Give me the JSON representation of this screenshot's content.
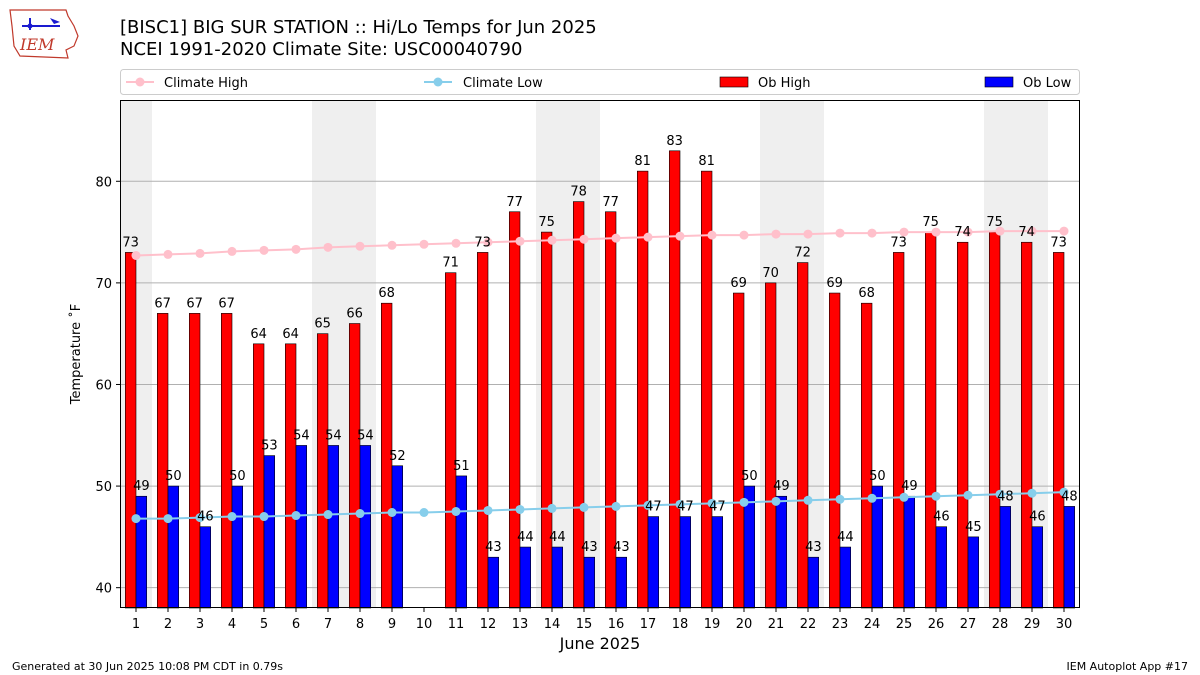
{
  "header": {
    "logo_text": "IEM",
    "title_line1": "[BISC1] BIG SUR STATION :: Hi/Lo Temps for Jun 2025",
    "title_line2": "NCEI 1991-2020 Climate Site: USC00040790"
  },
  "footer": {
    "generated": "Generated at 30 Jun 2025 10:08 PM CDT in 0.79s",
    "app": "IEM Autoplot App #17"
  },
  "colors": {
    "ob_high": "#ff0000",
    "ob_low": "#0000ff",
    "climate_high": "#ffc0cb",
    "climate_low": "#87ceeb",
    "weekend_band": "#efefef",
    "grid": "#b0b0b0"
  },
  "chart_data": {
    "type": "bar",
    "xlabel": "June 2025",
    "ylabel": "Temperature ˚F",
    "ylim": [
      38,
      88
    ],
    "yticks": [
      40,
      50,
      60,
      70,
      80
    ],
    "grid": true,
    "legend_position": "top",
    "categories": [
      "1",
      "2",
      "3",
      "4",
      "5",
      "6",
      "7",
      "8",
      "9",
      "10",
      "11",
      "12",
      "13",
      "14",
      "15",
      "16",
      "17",
      "18",
      "19",
      "20",
      "21",
      "22",
      "23",
      "24",
      "25",
      "26",
      "27",
      "28",
      "29",
      "30"
    ],
    "weekend_days": [
      1,
      7,
      8,
      14,
      15,
      21,
      22,
      28,
      29
    ],
    "series": [
      {
        "name": "Ob High",
        "kind": "bar",
        "values": [
          73,
          67,
          67,
          67,
          64,
          64,
          65,
          66,
          68,
          null,
          71,
          73,
          77,
          75,
          78,
          77,
          81,
          83,
          81,
          69,
          70,
          72,
          69,
          68,
          73,
          75,
          74,
          75,
          74,
          73
        ]
      },
      {
        "name": "Ob Low",
        "kind": "bar",
        "values": [
          49,
          50,
          46,
          50,
          53,
          54,
          54,
          54,
          52,
          null,
          51,
          43,
          44,
          44,
          43,
          43,
          47,
          47,
          47,
          50,
          49,
          43,
          44,
          50,
          49,
          46,
          45,
          48,
          46,
          48
        ]
      },
      {
        "name": "Climate High",
        "kind": "line",
        "values": [
          72.7,
          72.8,
          72.9,
          73.1,
          73.2,
          73.3,
          73.5,
          73.6,
          73.7,
          73.8,
          73.9,
          74.0,
          74.1,
          74.2,
          74.3,
          74.4,
          74.5,
          74.6,
          74.7,
          74.7,
          74.8,
          74.8,
          74.9,
          74.9,
          75.0,
          75.0,
          75.0,
          75.1,
          75.1,
          75.1
        ]
      },
      {
        "name": "Climate Low",
        "kind": "line",
        "values": [
          46.8,
          46.8,
          46.9,
          47.0,
          47.0,
          47.1,
          47.2,
          47.3,
          47.4,
          47.4,
          47.5,
          47.6,
          47.7,
          47.8,
          47.9,
          48.0,
          48.1,
          48.2,
          48.3,
          48.4,
          48.5,
          48.6,
          48.7,
          48.8,
          48.9,
          49.0,
          49.1,
          49.2,
          49.3,
          49.4
        ]
      }
    ]
  }
}
